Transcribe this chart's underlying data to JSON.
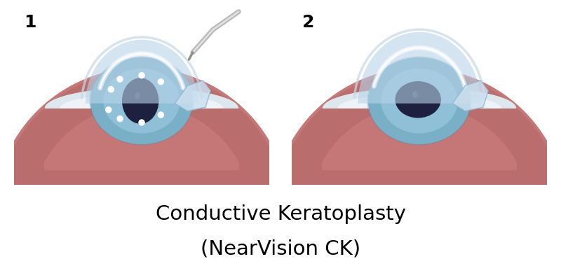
{
  "title_line1": "Conductive Keratoplasty",
  "title_line2": "(NearVision CK)",
  "title_fontsize": 21,
  "subtitle_fontsize": 21,
  "label1": "1",
  "label2": "2",
  "label_fontsize": 18,
  "bg_color": "#ffffff",
  "border_color": "#555555",
  "eyeball_color": "#c47878",
  "eyeball_dark": "#a85a5a",
  "sclera_color": "#dde8ee",
  "iris_color": "#7aafc8",
  "iris_dark": "#5a8faa",
  "pupil_color": "#1e2040",
  "cornea_color": "#b8d4e8",
  "cornea_alpha": 0.6,
  "flap_color": "#cce0f0",
  "flap_edge": "#90b8d0",
  "dot_color": "#ffffff",
  "probe_color": "#b8b8b8",
  "probe_highlight": "#e0e0e0"
}
